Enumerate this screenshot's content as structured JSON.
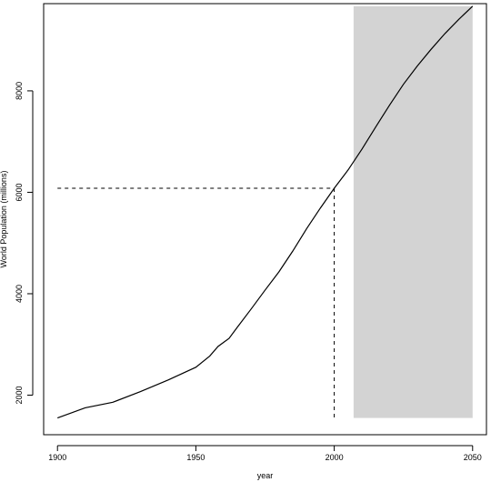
{
  "chart_data": {
    "type": "line",
    "title": "",
    "xlabel": "year",
    "ylabel": "World Population (millions)",
    "xlim": [
      1895,
      2055
    ],
    "ylim": [
      1220,
      9720
    ],
    "x_ticks": [
      1900,
      1950,
      2000,
      2050
    ],
    "y_ticks": [
      2000,
      4000,
      6000,
      8000
    ],
    "x_tick_labels": [
      "1900",
      "1950",
      "2000",
      "2050"
    ],
    "y_tick_labels": [
      "2000",
      "4000",
      "6000",
      "8000"
    ],
    "grid": false,
    "legend": "none",
    "series": [
      {
        "x": [
          1900,
          1910,
          1920,
          1930,
          1940,
          1950,
          1955,
          1958,
          1960,
          1962,
          1965,
          1970,
          1975,
          1980,
          1985,
          1990,
          1995,
          2000,
          2005,
          2010,
          2015,
          2020,
          2025,
          2030,
          2035,
          2040,
          2045,
          2050
        ],
        "values": [
          1550,
          1750,
          1860,
          2070,
          2300,
          2550,
          2770,
          2960,
          3040,
          3120,
          3340,
          3700,
          4070,
          4430,
          4840,
          5280,
          5690,
          6080,
          6440,
          6850,
          7290,
          7720,
          8130,
          8490,
          8820,
          9130,
          9410,
          9670
        ],
        "color": "#000000"
      }
    ],
    "reference_point": {
      "x": 2000,
      "y": 6080
    },
    "shaded_region": {
      "x_start": 2007,
      "x_end": 2050,
      "y_start": 1550,
      "y_end": 9670,
      "color": "#d3d3d3"
    }
  }
}
